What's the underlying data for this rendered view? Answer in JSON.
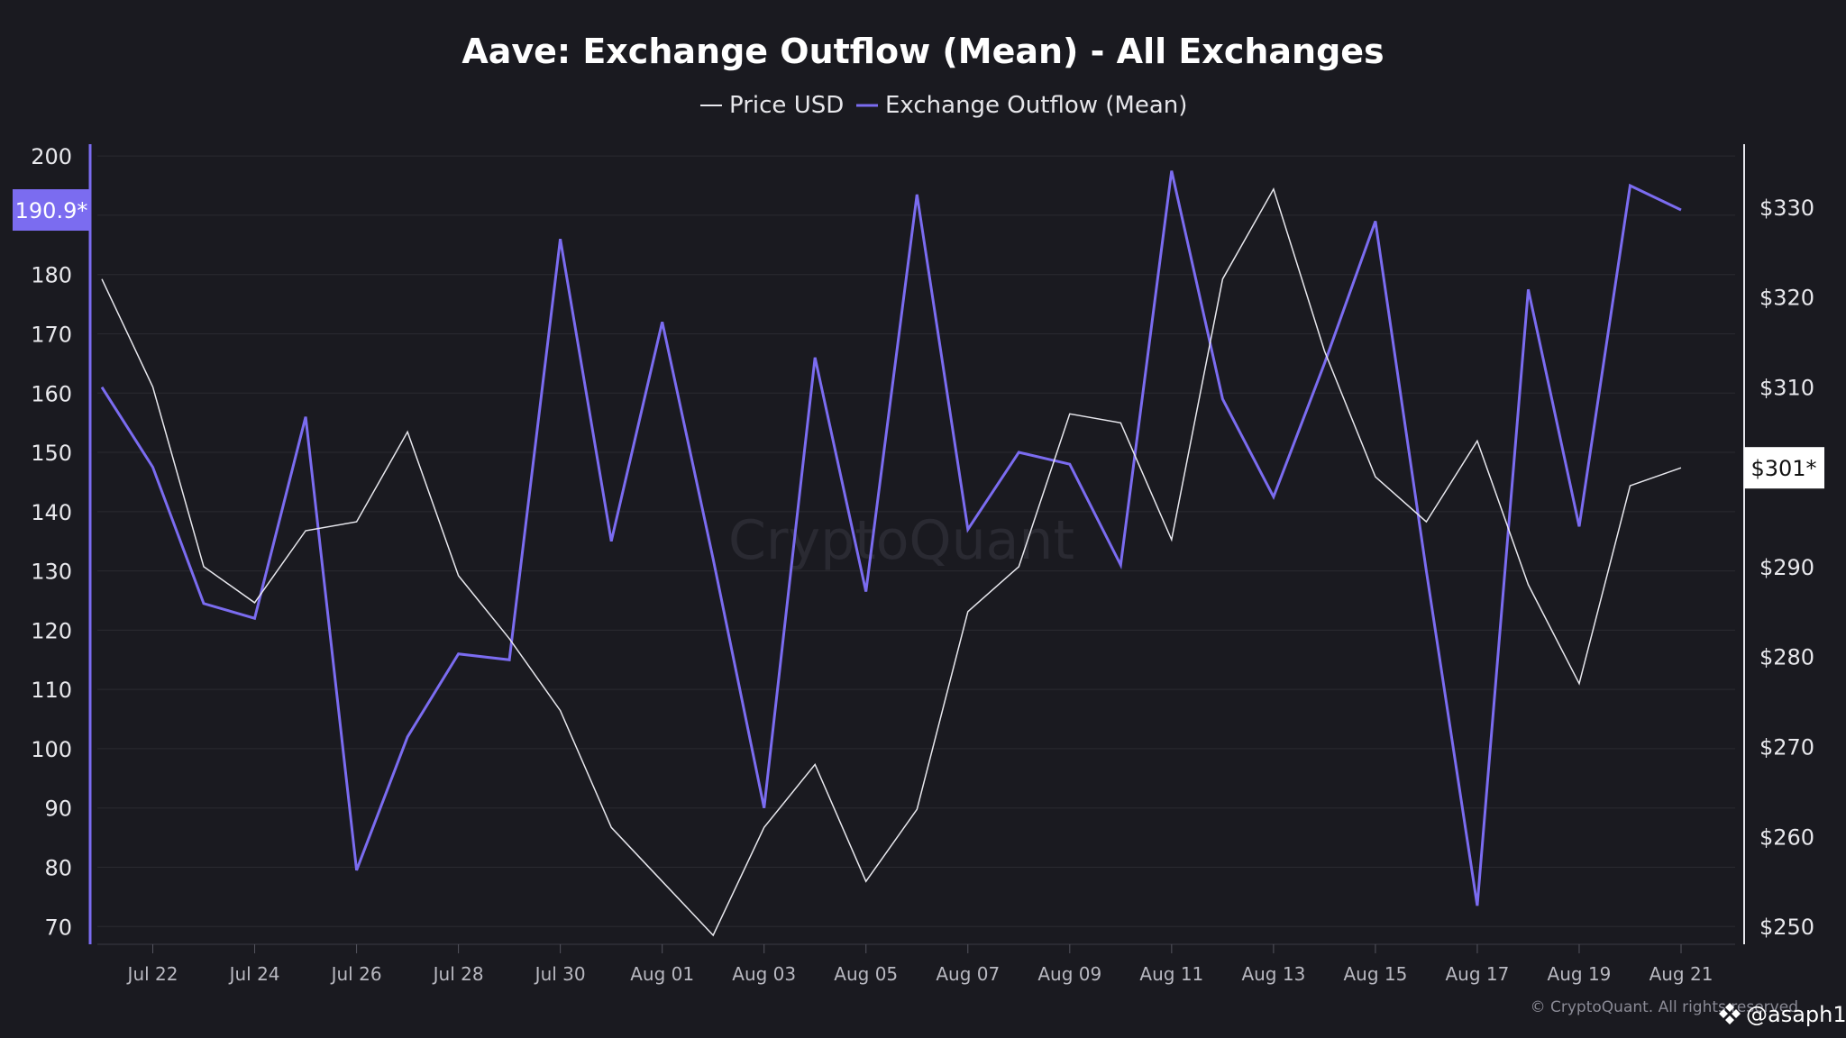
{
  "colors": {
    "background": "#1a1a20",
    "outflow": "#7b6cf0",
    "price": "#e8e8ee",
    "grid": "#2a2a31"
  },
  "chart_data": {
    "type": "line",
    "title": "Aave: Exchange Outflow (Mean) - All Exchanges",
    "legend": [
      "Price USD",
      "Exchange Outflow (Mean)"
    ],
    "legend_position": "top-center",
    "grid": true,
    "x_ticks": [
      "Jul 22",
      "Jul 24",
      "Jul 26",
      "Jul 28",
      "Jul 30",
      "Aug 01",
      "Aug 03",
      "Aug 05",
      "Aug 07",
      "Aug 09",
      "Aug 11",
      "Aug 13",
      "Aug 15",
      "Aug 17",
      "Aug 19",
      "Aug 21"
    ],
    "x": [
      "2024-07-21",
      "2024-07-22",
      "2024-07-23",
      "2024-07-24",
      "2024-07-25",
      "2024-07-26",
      "2024-07-27",
      "2024-07-28",
      "2024-07-29",
      "2024-07-30",
      "2024-07-31",
      "2024-08-01",
      "2024-08-02",
      "2024-08-03",
      "2024-08-04",
      "2024-08-05",
      "2024-08-06",
      "2024-08-07",
      "2024-08-08",
      "2024-08-09",
      "2024-08-10",
      "2024-08-11",
      "2024-08-12",
      "2024-08-13",
      "2024-08-14",
      "2024-08-15",
      "2024-08-16",
      "2024-08-17",
      "2024-08-18",
      "2024-08-19",
      "2024-08-20",
      "2024-08-21"
    ],
    "y_left": {
      "ticks": [
        "200",
        "190",
        "180",
        "170",
        "160",
        "150",
        "140",
        "130",
        "120",
        "110",
        "100",
        "90",
        "80",
        "70"
      ],
      "range": [
        67,
        202
      ]
    },
    "y_right": {
      "ticks": [
        "$330",
        "$320",
        "$310",
        "$290",
        "$280",
        "$270",
        "$260",
        "$250"
      ],
      "range": [
        248,
        337
      ]
    },
    "series": [
      {
        "name": "Exchange Outflow (Mean)",
        "axis": "left",
        "values": [
          161,
          147.5,
          124.5,
          122,
          156,
          79.5,
          102,
          116,
          115,
          186,
          135,
          172,
          132,
          90,
          166,
          126.5,
          193.5,
          137,
          150,
          148,
          131,
          197.5,
          159,
          142.5,
          165,
          189,
          130,
          73.5,
          177.5,
          137.5,
          195,
          190.9
        ]
      },
      {
        "name": "Price USD",
        "axis": "right",
        "values": [
          322,
          310,
          290,
          286,
          294,
          295,
          305,
          289,
          282,
          274,
          261,
          255,
          249,
          261,
          268,
          255,
          263,
          285,
          290,
          307,
          306,
          293,
          322,
          332,
          314,
          300,
          295,
          304,
          288,
          277,
          299,
          301
        ]
      }
    ],
    "last_value_labels": {
      "left": "190.9*",
      "right": "$301*"
    }
  },
  "watermark": "CryptoQuant",
  "credit": "© CryptoQuant. All rights reserved",
  "handle": "@asaph1",
  "handle_icon": "binance-logo-icon"
}
